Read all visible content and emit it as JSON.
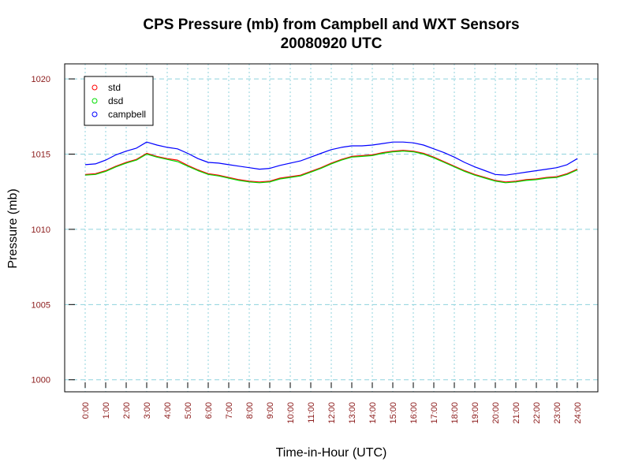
{
  "chart_data": {
    "type": "line",
    "title": "CPS Pressure (mb) from Campbell and WXT Sensors",
    "subtitle": "20080920  UTC",
    "xlabel": "Time-in-Hour (UTC)",
    "ylabel": "Pressure (mb)",
    "xlim": [
      -1,
      25
    ],
    "ylim": [
      999.2,
      1021
    ],
    "x_ticks": [
      0,
      1,
      2,
      3,
      4,
      5,
      6,
      7,
      8,
      9,
      10,
      11,
      12,
      13,
      14,
      15,
      16,
      17,
      18,
      19,
      20,
      21,
      22,
      23,
      24
    ],
    "x_tick_labels": [
      "0:00",
      "1:00",
      "2:00",
      "3:00",
      "4:00",
      "5:00",
      "6:00",
      "7:00",
      "8:00",
      "9:00",
      "10:00",
      "11:00",
      "12:00",
      "13:00",
      "14:00",
      "15:00",
      "16:00",
      "17:00",
      "18:00",
      "19:00",
      "20:00",
      "21:00",
      "22:00",
      "23:00",
      "24:00"
    ],
    "y_ticks": [
      1000,
      1005,
      1010,
      1015,
      1020
    ],
    "y_tick_labels": [
      "1000",
      "1005",
      "1010",
      "1015",
      "1020"
    ],
    "grid": true,
    "legend_position": "top-left",
    "x": [
      0,
      0.5,
      1,
      1.5,
      2,
      2.5,
      3,
      3.5,
      4,
      4.5,
      5,
      5.5,
      6,
      6.5,
      7,
      7.5,
      8,
      8.5,
      9,
      9.5,
      10,
      10.5,
      11,
      11.5,
      12,
      12.5,
      13,
      13.5,
      14,
      14.5,
      15,
      15.5,
      16,
      16.5,
      17,
      17.5,
      18,
      18.5,
      19,
      19.5,
      20,
      20.5,
      21,
      21.5,
      22,
      22.5,
      23,
      23.5,
      24
    ],
    "series": [
      {
        "name": "std",
        "color": "#ff0000",
        "values": [
          1013.65,
          1013.7,
          1013.9,
          1014.2,
          1014.45,
          1014.65,
          1015.05,
          1014.85,
          1014.7,
          1014.6,
          1014.25,
          1013.95,
          1013.7,
          1013.6,
          1013.45,
          1013.3,
          1013.2,
          1013.15,
          1013.2,
          1013.4,
          1013.5,
          1013.6,
          1013.85,
          1014.1,
          1014.4,
          1014.65,
          1014.85,
          1014.9,
          1014.95,
          1015.1,
          1015.2,
          1015.25,
          1015.2,
          1015.05,
          1014.8,
          1014.5,
          1014.2,
          1013.9,
          1013.65,
          1013.45,
          1013.25,
          1013.15,
          1013.2,
          1013.3,
          1013.35,
          1013.45,
          1013.5,
          1013.7,
          1014.0
        ]
      },
      {
        "name": "dsd",
        "color": "#00dd00",
        "values": [
          1013.6,
          1013.65,
          1013.85,
          1014.15,
          1014.4,
          1014.6,
          1015.0,
          1014.8,
          1014.65,
          1014.5,
          1014.2,
          1013.9,
          1013.65,
          1013.55,
          1013.4,
          1013.25,
          1013.15,
          1013.1,
          1013.15,
          1013.35,
          1013.45,
          1013.55,
          1013.8,
          1014.05,
          1014.35,
          1014.6,
          1014.8,
          1014.85,
          1014.9,
          1015.05,
          1015.15,
          1015.2,
          1015.15,
          1015.0,
          1014.75,
          1014.45,
          1014.15,
          1013.85,
          1013.6,
          1013.4,
          1013.2,
          1013.1,
          1013.15,
          1013.25,
          1013.3,
          1013.4,
          1013.45,
          1013.65,
          1013.95
        ]
      },
      {
        "name": "campbell",
        "color": "#0000ff",
        "values": [
          1014.3,
          1014.35,
          1014.6,
          1014.95,
          1015.2,
          1015.4,
          1015.8,
          1015.6,
          1015.45,
          1015.35,
          1015.05,
          1014.7,
          1014.45,
          1014.4,
          1014.3,
          1014.2,
          1014.1,
          1014.0,
          1014.05,
          1014.25,
          1014.4,
          1014.55,
          1014.8,
          1015.05,
          1015.3,
          1015.45,
          1015.55,
          1015.55,
          1015.6,
          1015.7,
          1015.8,
          1015.8,
          1015.75,
          1015.6,
          1015.35,
          1015.1,
          1014.8,
          1014.45,
          1014.15,
          1013.9,
          1013.65,
          1013.6,
          1013.7,
          1013.8,
          1013.9,
          1014.0,
          1014.1,
          1014.3,
          1014.7
        ]
      }
    ]
  }
}
